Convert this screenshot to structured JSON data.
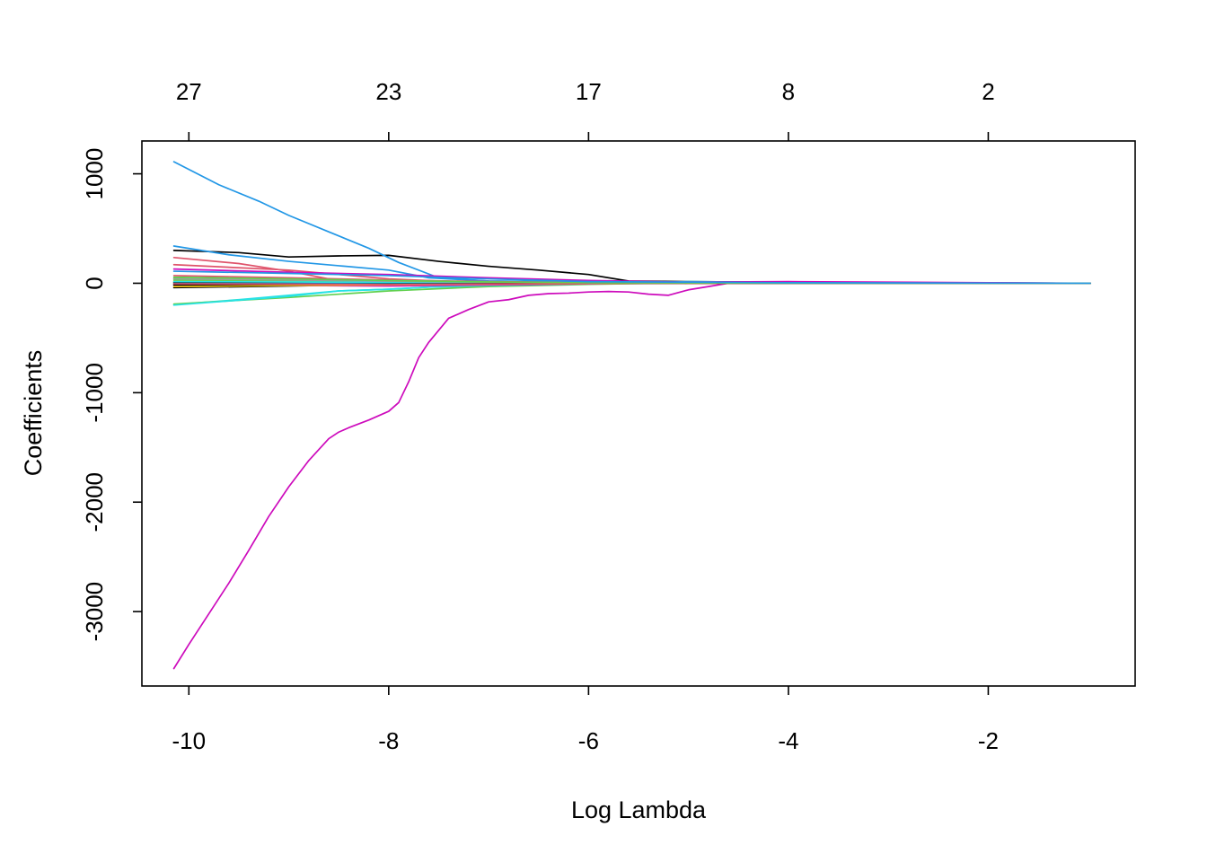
{
  "chart_data": {
    "type": "line",
    "title": "",
    "xlabel": "Log Lambda",
    "ylabel": "Coefficients",
    "xlim": [
      -10.47,
      -0.53
    ],
    "ylim": [
      -3680,
      1300
    ],
    "x_ticks": [
      -10,
      -8,
      -6,
      -4,
      -2
    ],
    "x_tick_labels": [
      "-10",
      "-8",
      "-6",
      "-4",
      "-2"
    ],
    "y_ticks": [
      1000,
      0,
      -1000,
      -2000,
      -3000
    ],
    "y_tick_labels": [
      "1000",
      "0",
      "-1000",
      "-2000",
      "-3000"
    ],
    "top_axis": {
      "ticks": [
        -10,
        -8,
        -6,
        -4,
        -2
      ],
      "labels": [
        "27",
        "23",
        "17",
        "8",
        "2"
      ]
    },
    "grid": false,
    "legend": "none",
    "series": [
      {
        "color": "#000000",
        "x": [
          -10.15,
          -9.5,
          -9.0,
          -8.5,
          -8.0,
          -7.5,
          -7.0,
          -6.5,
          -6.0,
          -5.6,
          -5.0,
          -4.0,
          -3.0,
          -2.0,
          -0.98
        ],
        "y": [
          300,
          280,
          240,
          250,
          255,
          200,
          155,
          120,
          80,
          20,
          15,
          8,
          5,
          3,
          0
        ]
      },
      {
        "color": "#DF536B",
        "x": [
          -10.15,
          -9.5,
          -9.0,
          -8.6,
          -8.2,
          -7.5,
          -7.0,
          -6.0,
          -5.0,
          -4.0,
          -0.98
        ],
        "y": [
          235,
          180,
          110,
          40,
          15,
          5,
          2,
          1,
          0,
          0,
          0
        ]
      },
      {
        "color": "#61D04F",
        "x": [
          -10.15,
          -9.0,
          -8.0,
          -7.0,
          -6.0,
          -5.0,
          -4.0,
          -0.98
        ],
        "y": [
          45,
          35,
          20,
          10,
          5,
          2,
          1,
          0
        ]
      },
      {
        "color": "#2297E6",
        "x": [
          -10.15,
          -9.7,
          -9.3,
          -9.0,
          -8.6,
          -8.2,
          -7.9,
          -7.5,
          -7.0,
          -6.0,
          -5.0,
          -4.0,
          -0.98
        ],
        "y": [
          1110,
          900,
          750,
          620,
          470,
          320,
          190,
          50,
          20,
          10,
          5,
          2,
          0
        ]
      },
      {
        "color": "#28E2E5",
        "x": [
          -10.15,
          -9.5,
          -9.0,
          -8.5,
          -8.0,
          -7.6,
          -7.0,
          -6.5,
          -6.0,
          -5.0,
          -4.0,
          -0.98
        ],
        "y": [
          -195,
          -150,
          -110,
          -70,
          -55,
          -35,
          -25,
          -15,
          -5,
          -2,
          -1,
          0
        ]
      },
      {
        "color": "#CD0BBC",
        "x": [
          -10.15,
          -10.0,
          -9.8,
          -9.6,
          -9.4,
          -9.2,
          -9.0,
          -8.8,
          -8.6,
          -8.5,
          -8.4,
          -8.2,
          -8.0,
          -7.9,
          -7.8,
          -7.7,
          -7.6,
          -7.4,
          -7.2,
          -7.0,
          -6.8,
          -6.6,
          -6.4,
          -6.2,
          -6.0,
          -5.8,
          -5.6,
          -5.4,
          -5.2,
          -5.0,
          -4.8,
          -4.6,
          -4.0,
          -3.0,
          -2.0,
          -0.98
        ],
        "y": [
          -3520,
          -3300,
          -3020,
          -2740,
          -2440,
          -2130,
          -1860,
          -1620,
          -1420,
          -1360,
          -1320,
          -1250,
          -1170,
          -1090,
          -900,
          -680,
          -540,
          -320,
          -240,
          -170,
          -150,
          -110,
          -95,
          -90,
          -80,
          -75,
          -80,
          -100,
          -110,
          -60,
          -30,
          0,
          0,
          0,
          0,
          0
        ]
      },
      {
        "color": "#F5C710",
        "x": [
          -10.15,
          -9.0,
          -8.0,
          -7.0,
          -6.0,
          -4.0,
          -0.98
        ],
        "y": [
          20,
          15,
          10,
          5,
          2,
          1,
          0
        ]
      },
      {
        "color": "#9E9E9E",
        "x": [
          -10.15,
          -9.0,
          -8.0,
          -7.0,
          -6.0,
          -4.0,
          -0.98
        ],
        "y": [
          10,
          8,
          5,
          3,
          1,
          0,
          0
        ]
      },
      {
        "color": "#000000",
        "x": [
          -10.15,
          -9.0,
          -8.0,
          -7.5,
          -7.0,
          -6.0,
          -4.0,
          -0.98
        ],
        "y": [
          -40,
          -25,
          -10,
          -5,
          -2,
          0,
          0,
          0
        ]
      },
      {
        "color": "#DF536B",
        "x": [
          -10.15,
          -9.0,
          -8.5,
          -8.0,
          -7.5,
          -7.0,
          -6.0,
          -5.0,
          -4.0,
          -0.98
        ],
        "y": [
          170,
          120,
          80,
          40,
          20,
          10,
          5,
          3,
          1,
          0
        ]
      },
      {
        "color": "#61D04F",
        "x": [
          -10.15,
          -9.0,
          -8.0,
          -7.0,
          -6.0,
          -5.0,
          -4.0,
          -0.98
        ],
        "y": [
          -190,
          -130,
          -70,
          -30,
          -10,
          5,
          2,
          0
        ]
      },
      {
        "color": "#2297E6",
        "x": [
          -10.15,
          -9.6,
          -9.0,
          -8.5,
          -8.0,
          -7.6,
          -7.0,
          -6.0,
          -5.0,
          -4.0,
          -0.98
        ],
        "y": [
          340,
          260,
          200,
          160,
          120,
          50,
          20,
          10,
          5,
          2,
          0
        ]
      },
      {
        "color": "#28E2E5",
        "x": [
          -10.15,
          -9.0,
          -8.5,
          -8.0,
          -7.5,
          -7.0,
          -6.0,
          -5.0,
          -4.0,
          -0.98
        ],
        "y": [
          -200,
          -120,
          -70,
          -55,
          -30,
          -20,
          -5,
          15,
          8,
          0
        ]
      },
      {
        "color": "#CD0BBC",
        "x": [
          -10.15,
          -9.0,
          -8.0,
          -7.0,
          -6.0,
          -5.0,
          -4.0,
          -0.98
        ],
        "y": [
          130,
          100,
          80,
          50,
          25,
          10,
          5,
          0
        ]
      },
      {
        "color": "#F5C710",
        "x": [
          -10.15,
          -9.0,
          -8.0,
          -7.0,
          -6.0,
          -4.0,
          -0.98
        ],
        "y": [
          -10,
          -8,
          -5,
          -2,
          0,
          0,
          0
        ]
      },
      {
        "color": "#9E9E9E",
        "x": [
          -10.15,
          -9.0,
          -8.0,
          -7.0,
          -6.0,
          -4.0,
          -0.98
        ],
        "y": [
          -25,
          -18,
          -10,
          -5,
          -2,
          0,
          0
        ]
      },
      {
        "color": "#000000",
        "x": [
          -10.15,
          -9.0,
          -8.0,
          -7.0,
          -6.0,
          -4.0,
          -0.98
        ],
        "y": [
          5,
          4,
          3,
          2,
          1,
          0,
          0
        ]
      },
      {
        "color": "#DF536B",
        "x": [
          -10.15,
          -9.0,
          -8.0,
          -7.0,
          -6.0,
          -4.0,
          -0.98
        ],
        "y": [
          70,
          50,
          30,
          15,
          5,
          2,
          0
        ]
      },
      {
        "color": "#61D04F",
        "x": [
          -10.15,
          -9.0,
          -8.0,
          -7.0,
          -6.0,
          -4.0,
          -0.98
        ],
        "y": [
          30,
          25,
          15,
          8,
          3,
          1,
          0
        ]
      },
      {
        "color": "#2297E6",
        "x": [
          -10.15,
          -9.0,
          -8.0,
          -7.0,
          -6.0,
          -4.0,
          -0.98
        ],
        "y": [
          -5,
          -4,
          -3,
          -2,
          -1,
          0,
          0
        ]
      },
      {
        "color": "#28E2E5",
        "x": [
          -10.15,
          -9.0,
          -8.0,
          -7.0,
          -6.0,
          -4.0,
          -0.98
        ],
        "y": [
          15,
          12,
          8,
          4,
          2,
          1,
          0
        ]
      },
      {
        "color": "#CD0BBC",
        "x": [
          -10.15,
          -9.0,
          -8.0,
          -7.0,
          -6.0,
          -5.0,
          -4.0,
          -0.98
        ],
        "y": [
          -15,
          -20,
          -25,
          -15,
          -5,
          10,
          15,
          0
        ]
      },
      {
        "color": "#F5C710",
        "x": [
          -10.15,
          -9.0,
          -8.0,
          -7.0,
          -6.0,
          -4.0,
          -0.98
        ],
        "y": [
          -30,
          -20,
          -15,
          -8,
          -3,
          0,
          0
        ]
      },
      {
        "color": "#9E9E9E",
        "x": [
          -10.15,
          -9.0,
          -8.0,
          -7.0,
          -6.0,
          -4.0,
          -0.98
        ],
        "y": [
          40,
          30,
          20,
          10,
          4,
          1,
          0
        ]
      },
      {
        "color": "#000000",
        "x": [
          -10.15,
          -9.0,
          -8.0,
          -7.0,
          -6.0,
          -4.0,
          -0.98
        ],
        "y": [
          -15,
          -10,
          -8,
          -4,
          -1,
          0,
          0
        ]
      },
      {
        "color": "#DF536B",
        "x": [
          -10.15,
          -9.0,
          -8.0,
          -7.0,
          -6.0,
          -4.0,
          -0.98
        ],
        "y": [
          -5,
          -8,
          -12,
          -6,
          -2,
          0,
          0
        ]
      },
      {
        "color": "#61D04F",
        "x": [
          -10.15,
          -9.0,
          -8.0,
          -7.0,
          -6.0,
          -4.0,
          -0.98
        ],
        "y": [
          55,
          40,
          25,
          12,
          5,
          1,
          0
        ]
      },
      {
        "color": "#2297E6",
        "x": [
          -10.15,
          -9.0,
          -8.0,
          -7.0,
          -6.0,
          -4.0,
          -0.98
        ],
        "y": [
          110,
          90,
          70,
          40,
          15,
          5,
          0
        ]
      }
    ]
  }
}
